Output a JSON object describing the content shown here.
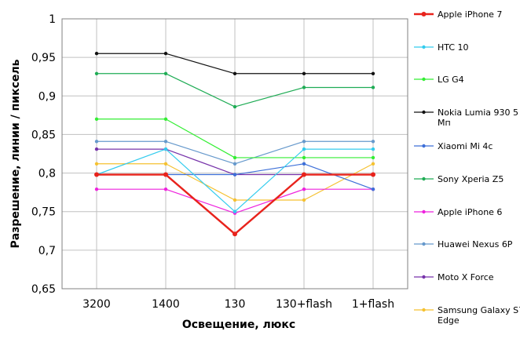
{
  "chart_data": {
    "type": "line",
    "title": "",
    "xlabel": "Освещение,  люкс",
    "ylabel": "Разрешение,  линии / пиксель",
    "categories": [
      "3200",
      "1400",
      "130",
      "130+flash",
      "1+flash"
    ],
    "ylim": [
      0.65,
      1
    ],
    "yticks": [
      "0,65",
      "0,7",
      "0,75",
      "0,8",
      "0,85",
      "0,9",
      "0,95",
      "1"
    ],
    "grid": true,
    "legend": "right",
    "series": [
      {
        "name": "Apple iPhone 7",
        "color": "#e8231c",
        "values": [
          0.798,
          0.798,
          0.721,
          0.798,
          0.798
        ],
        "bold": true
      },
      {
        "name": "HTC 10",
        "color": "#33ccee",
        "values": [
          0.798,
          0.831,
          0.75,
          0.831,
          0.831
        ]
      },
      {
        "name": "LG G4",
        "color": "#33ee33",
        "values": [
          0.87,
          0.87,
          0.82,
          0.82,
          0.82
        ]
      },
      {
        "name": "Nokia Lumia 930 5 Мп",
        "color": "#111111",
        "values": [
          0.955,
          0.955,
          0.929,
          0.929,
          0.929
        ]
      },
      {
        "name": "Xiaomi Mi 4c",
        "color": "#3d6fd8",
        "values": [
          0.798,
          0.798,
          0.798,
          0.812,
          0.779
        ]
      },
      {
        "name": "Sony Xperia Z5",
        "color": "#1fac55",
        "values": [
          0.929,
          0.929,
          0.886,
          0.911,
          0.911
        ]
      },
      {
        "name": "Apple iPhone 6",
        "color": "#ee22dd",
        "values": [
          0.779,
          0.779,
          0.748,
          0.779,
          0.779
        ]
      },
      {
        "name": "Huawei Nexus 6P",
        "color": "#6699cc",
        "values": [
          0.841,
          0.841,
          0.812,
          0.841,
          0.841
        ]
      },
      {
        "name": "Moto X Force",
        "color": "#7733aa",
        "values": [
          0.831,
          0.831,
          0.798,
          0.798,
          0.798
        ]
      },
      {
        "name": "Samsung Galaxy S7 Edge",
        "color": "#f5c130",
        "values": [
          0.812,
          0.812,
          0.765,
          0.765,
          0.812
        ]
      }
    ]
  }
}
